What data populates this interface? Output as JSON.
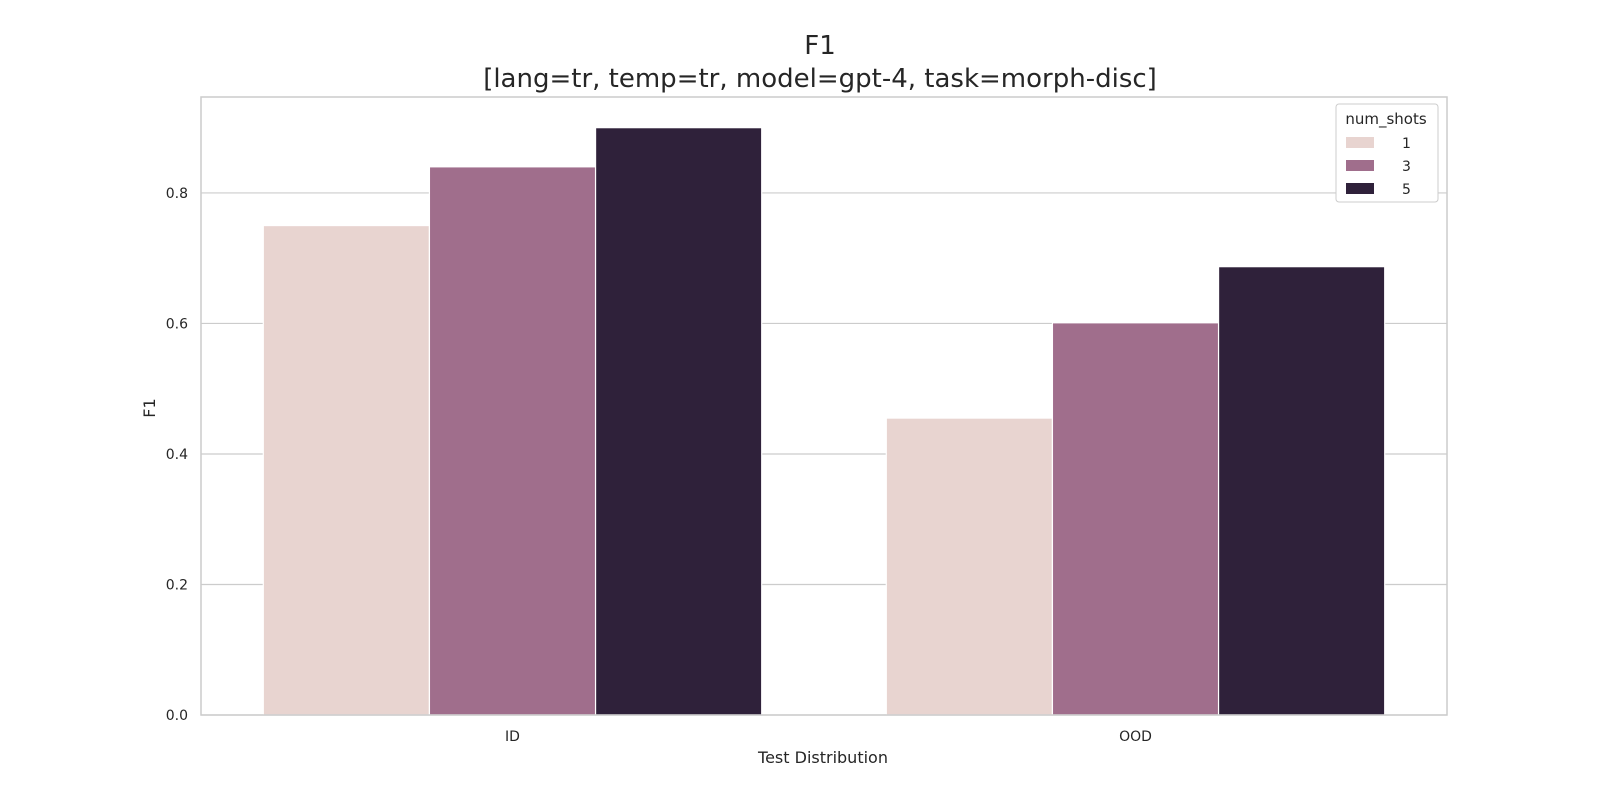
{
  "chart_data": {
    "type": "bar",
    "title": "F1",
    "subtitle": "[lang=tr, temp=tr, model=gpt-4, task=morph-disc]",
    "xlabel": "Test Distribution",
    "ylabel": "F1",
    "categories": [
      "ID",
      "OOD"
    ],
    "ylim": [
      0,
      0.947
    ],
    "yticks": [
      0.0,
      0.2,
      0.4,
      0.6,
      0.8
    ],
    "ytick_labels": [
      "0.0",
      "0.2",
      "0.4",
      "0.6",
      "0.8"
    ],
    "grid": "horizontal",
    "legend": {
      "title": "num_shots",
      "placement": "top-right"
    },
    "series": [
      {
        "name": "1",
        "color": "#e8d4d0",
        "values": [
          0.75,
          0.455
        ]
      },
      {
        "name": "3",
        "color": "#a06e8c",
        "values": [
          0.84,
          0.601
        ]
      },
      {
        "name": "5",
        "color": "#2f213a",
        "values": [
          0.9,
          0.687
        ]
      }
    ]
  }
}
